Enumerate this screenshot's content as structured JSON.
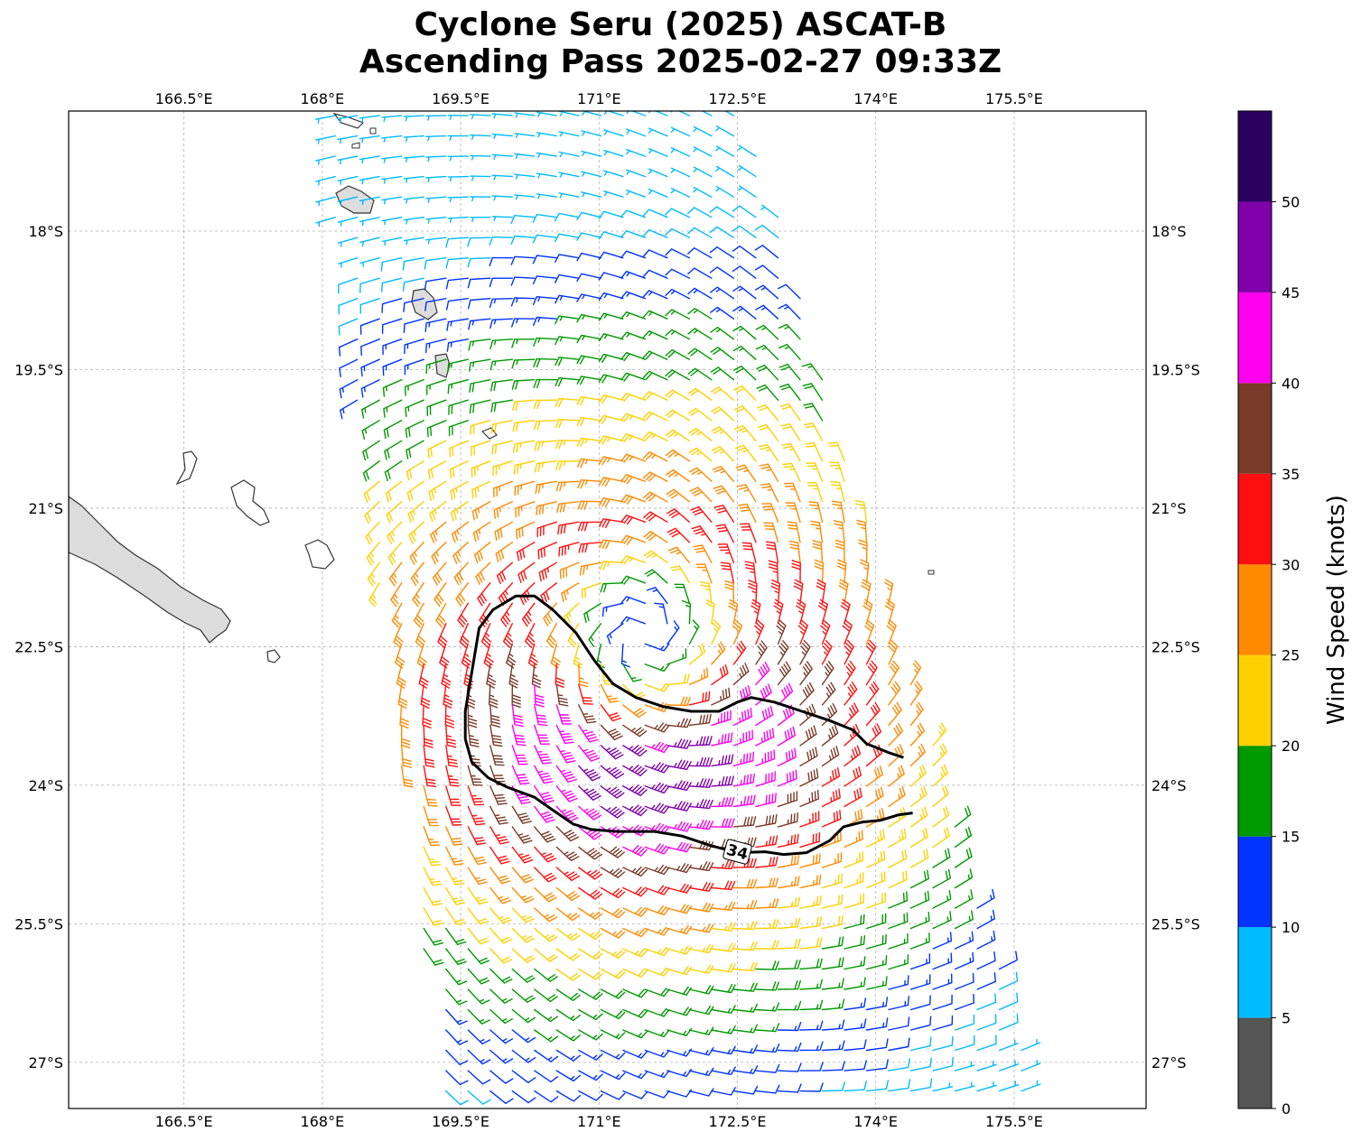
{
  "title": "Cyclone Seru (2025) ASCAT-B",
  "subtitle": "Ascending Pass 2025-02-27 09:33Z",
  "chart_data": {
    "type": "wind-barb-map",
    "lon_ticks": [
      {
        "value": 166.5,
        "label": "166.5°E"
      },
      {
        "value": 168.0,
        "label": "168°E"
      },
      {
        "value": 169.5,
        "label": "169.5°E"
      },
      {
        "value": 171.0,
        "label": "171°E"
      },
      {
        "value": 172.5,
        "label": "172.5°E"
      },
      {
        "value": 174.0,
        "label": "174°E"
      },
      {
        "value": 175.5,
        "label": "175.5°E"
      }
    ],
    "lat_ticks": [
      {
        "value": -18.0,
        "label": "18°S"
      },
      {
        "value": -19.5,
        "label": "19.5°S"
      },
      {
        "value": -21.0,
        "label": "21°S"
      },
      {
        "value": -22.5,
        "label": "22.5°S"
      },
      {
        "value": -24.0,
        "label": "24°S"
      },
      {
        "value": -25.5,
        "label": "25.5°S"
      },
      {
        "value": -27.0,
        "label": "27°S"
      }
    ],
    "lon_range": [
      165.25,
      176.93
    ],
    "lat_range": [
      -27.5,
      -16.7
    ],
    "grid": true,
    "storm_center": {
      "lon": 171.5,
      "lat": -22.4
    },
    "swath": {
      "west_lon_top": 168.0,
      "east_lon_top": 172.6,
      "west_lon_bottom": 169.3,
      "east_lon_bottom": 175.8
    },
    "contour": {
      "label": "34",
      "level_knots": 34,
      "points": [
        [
          169.55,
          -23.5
        ],
        [
          169.55,
          -23.2
        ],
        [
          169.6,
          -22.9
        ],
        [
          169.65,
          -22.6
        ],
        [
          169.7,
          -22.3
        ],
        [
          169.85,
          -22.1
        ],
        [
          170.1,
          -21.95
        ],
        [
          170.3,
          -21.95
        ],
        [
          170.5,
          -22.1
        ],
        [
          170.75,
          -22.35
        ],
        [
          170.95,
          -22.65
        ],
        [
          171.15,
          -22.9
        ],
        [
          171.4,
          -23.05
        ],
        [
          171.7,
          -23.15
        ],
        [
          172.0,
          -23.2
        ],
        [
          172.3,
          -23.2
        ],
        [
          172.5,
          -23.1
        ],
        [
          172.65,
          -23.05
        ],
        [
          172.9,
          -23.1
        ],
        [
          173.2,
          -23.2
        ],
        [
          173.5,
          -23.3
        ],
        [
          173.75,
          -23.4
        ],
        [
          173.9,
          -23.55
        ],
        [
          174.15,
          -23.65
        ],
        [
          174.3,
          -23.7
        ]
      ],
      "points_south": [
        [
          169.55,
          -23.5
        ],
        [
          169.62,
          -23.75
        ],
        [
          169.8,
          -23.92
        ],
        [
          170.0,
          -24.02
        ],
        [
          170.3,
          -24.13
        ],
        [
          170.5,
          -24.27
        ],
        [
          170.72,
          -24.42
        ],
        [
          170.92,
          -24.48
        ],
        [
          171.2,
          -24.5
        ],
        [
          171.6,
          -24.5
        ],
        [
          171.9,
          -24.55
        ],
        [
          172.2,
          -24.65
        ],
        [
          172.5,
          -24.73
        ],
        [
          172.8,
          -24.72
        ],
        [
          173.0,
          -24.75
        ],
        [
          173.25,
          -24.73
        ],
        [
          173.5,
          -24.6
        ],
        [
          173.65,
          -24.45
        ],
        [
          173.85,
          -24.4
        ],
        [
          174.05,
          -24.38
        ],
        [
          174.25,
          -24.32
        ],
        [
          174.4,
          -24.3
        ]
      ]
    },
    "colorbar": {
      "label": "Wind Speed (knots)",
      "bounds": [
        0,
        5,
        10,
        15,
        20,
        25,
        30,
        35,
        40,
        45,
        50,
        55
      ],
      "tick_labels": [
        "0",
        "5",
        "10",
        "15",
        "20",
        "25",
        "30",
        "35",
        "40",
        "45",
        "50"
      ],
      "colors": [
        "#555555",
        "#00bbff",
        "#0033ff",
        "#009900",
        "#ffd000",
        "#ff8a00",
        "#ff1010",
        "#7a3a28",
        "#ff00ee",
        "#8000aa",
        "#2a0060"
      ]
    },
    "land_fill": "#dcdcdc",
    "coastline_color": "#333333",
    "grid_color": "#b0b0b0"
  }
}
